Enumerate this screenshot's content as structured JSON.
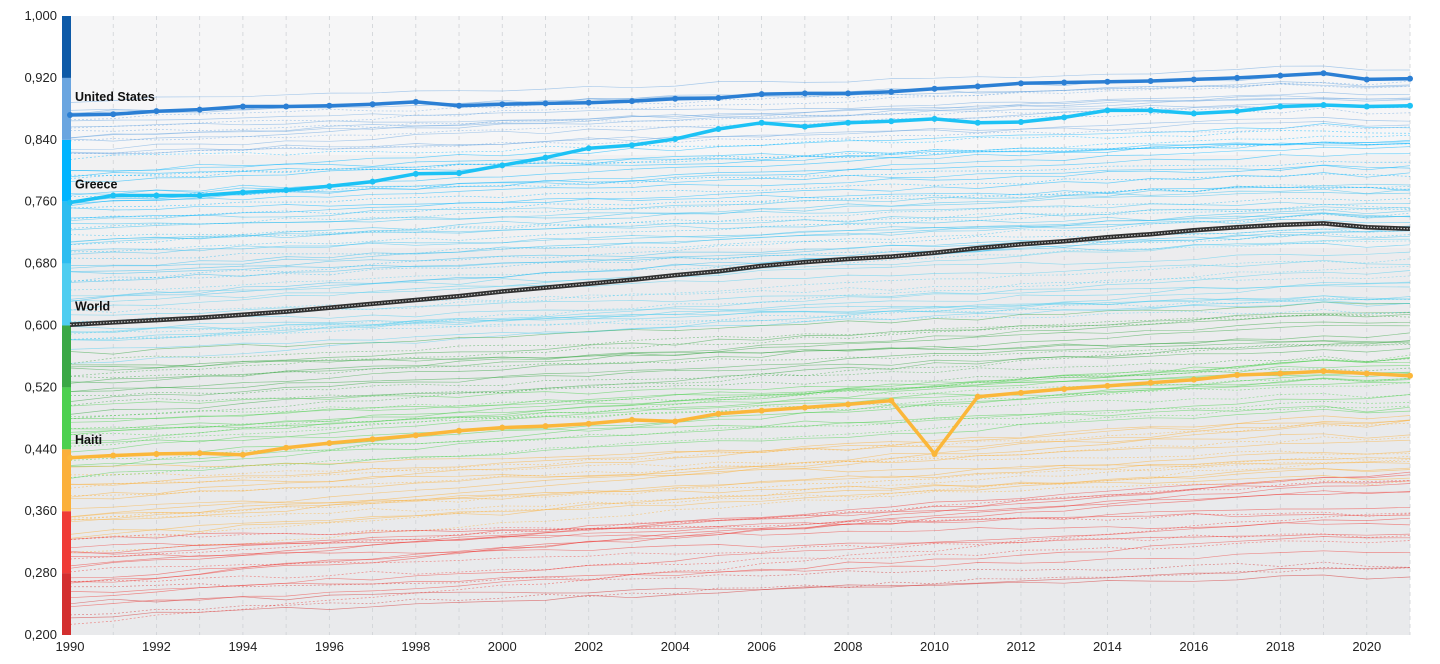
{
  "chart_data": {
    "type": "line",
    "title": "",
    "xlabel": "",
    "ylabel": "",
    "xlim": [
      1990,
      2021
    ],
    "ylim": [
      0.2,
      1.0
    ],
    "x_ticks": [
      1990,
      1992,
      1994,
      1996,
      1998,
      2000,
      2002,
      2004,
      2006,
      2008,
      2010,
      2012,
      2014,
      2016,
      2018,
      2020
    ],
    "x_tick_labels": [
      "1990",
      "1992",
      "1994",
      "1996",
      "1998",
      "2000",
      "2002",
      "2004",
      "2006",
      "2008",
      "2010",
      "2012",
      "2014",
      "2016",
      "2018",
      "2020"
    ],
    "y_ticks": [
      0.2,
      0.28,
      0.36,
      0.44,
      0.52,
      0.6,
      0.68,
      0.76,
      0.84,
      0.92,
      1.0
    ],
    "y_tick_labels": [
      "0,200",
      "0,280",
      "0,360",
      "0,440",
      "0,520",
      "0,600",
      "0,680",
      "0,760",
      "0,840",
      "0,920",
      "1,000"
    ],
    "grid": {
      "vertical": true,
      "horizontal": false
    },
    "legend": "none",
    "color_scale": [
      {
        "from": 0.2,
        "to": 0.28,
        "color": "#d32f2f"
      },
      {
        "from": 0.28,
        "to": 0.36,
        "color": "#ef3b36"
      },
      {
        "from": 0.36,
        "to": 0.44,
        "color": "#fbb03b"
      },
      {
        "from": 0.44,
        "to": 0.52,
        "color": "#4cd04f"
      },
      {
        "from": 0.52,
        "to": 0.6,
        "color": "#3aa845"
      },
      {
        "from": 0.6,
        "to": 0.68,
        "color": "#4ecdf0"
      },
      {
        "from": 0.68,
        "to": 0.76,
        "color": "#2dbdf0"
      },
      {
        "from": 0.76,
        "to": 0.84,
        "color": "#00b4ff"
      },
      {
        "from": 0.84,
        "to": 0.92,
        "color": "#6aa5e0"
      },
      {
        "from": 0.92,
        "to": 1.0,
        "color": "#0e5aa7"
      }
    ],
    "x": [
      1990,
      1991,
      1992,
      1993,
      1994,
      1995,
      1996,
      1997,
      1998,
      1999,
      2000,
      2001,
      2002,
      2003,
      2004,
      2005,
      2006,
      2007,
      2008,
      2009,
      2010,
      2011,
      2012,
      2013,
      2014,
      2015,
      2016,
      2017,
      2018,
      2019,
      2020,
      2021
    ],
    "series": [
      {
        "name": "United States",
        "color": "#2b7fd4",
        "values": [
          0.872,
          0.873,
          0.877,
          0.879,
          0.883,
          0.883,
          0.884,
          0.886,
          0.889,
          0.884,
          0.886,
          0.887,
          0.888,
          0.89,
          0.893,
          0.894,
          0.899,
          0.9,
          0.9,
          0.902,
          0.906,
          0.909,
          0.913,
          0.914,
          0.915,
          0.916,
          0.918,
          0.92,
          0.923,
          0.926,
          0.918,
          0.919
        ]
      },
      {
        "name": "Greece",
        "color": "#1cc2f5",
        "values": [
          0.759,
          0.768,
          0.768,
          0.768,
          0.772,
          0.775,
          0.78,
          0.786,
          0.796,
          0.797,
          0.807,
          0.817,
          0.829,
          0.833,
          0.841,
          0.854,
          0.862,
          0.857,
          0.862,
          0.864,
          0.867,
          0.862,
          0.863,
          0.869,
          0.878,
          0.878,
          0.874,
          0.877,
          0.883,
          0.885,
          0.883,
          0.884
        ]
      },
      {
        "name": "World",
        "color": "#3a3a3a",
        "values": [
          0.601,
          0.604,
          0.607,
          0.61,
          0.614,
          0.618,
          0.623,
          0.628,
          0.633,
          0.638,
          0.644,
          0.649,
          0.654,
          0.659,
          0.665,
          0.67,
          0.677,
          0.682,
          0.686,
          0.689,
          0.694,
          0.7,
          0.705,
          0.709,
          0.714,
          0.718,
          0.723,
          0.727,
          0.73,
          0.732,
          0.727,
          0.725
        ]
      },
      {
        "name": "Haiti",
        "color": "#fbb73a",
        "values": [
          0.429,
          0.432,
          0.434,
          0.435,
          0.433,
          0.442,
          0.448,
          0.453,
          0.458,
          0.464,
          0.468,
          0.47,
          0.473,
          0.478,
          0.476,
          0.486,
          0.49,
          0.494,
          0.498,
          0.503,
          0.434,
          0.508,
          0.513,
          0.518,
          0.522,
          0.526,
          0.53,
          0.536,
          0.538,
          0.541,
          0.538,
          0.535
        ]
      }
    ]
  }
}
